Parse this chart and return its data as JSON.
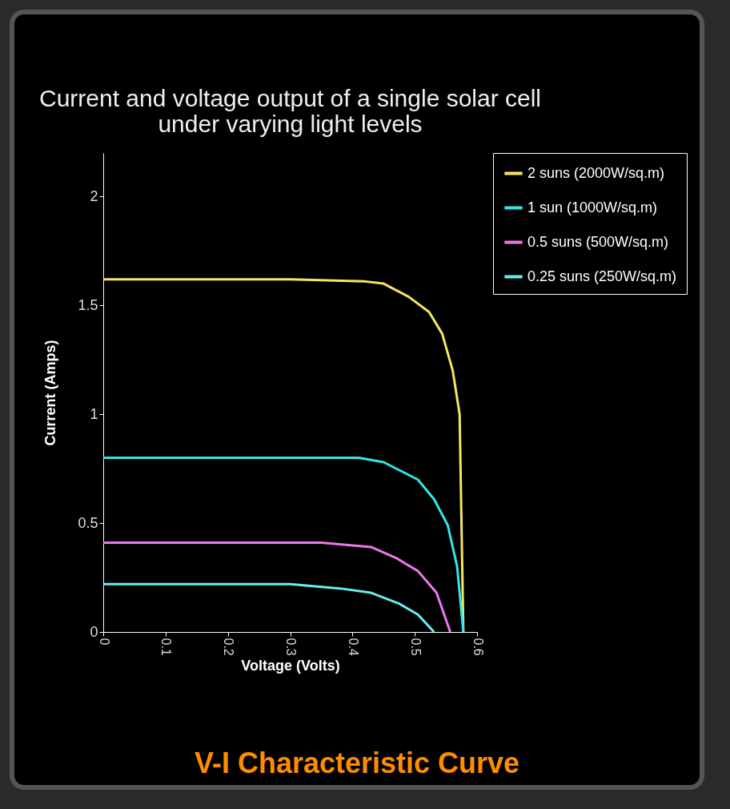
{
  "chart_data": {
    "type": "line",
    "title": [
      "Current and voltage output of a single solar cell",
      "under varying light levels"
    ],
    "xlabel": "Voltage (Volts)",
    "ylabel": "Current (Amps)",
    "xlim": [
      0,
      0.6
    ],
    "xticks": [
      0,
      0.1,
      0.2,
      0.3,
      0.4,
      0.5,
      0.6
    ],
    "ylim": [
      0,
      2.2
    ],
    "yticks": [
      0,
      0.5,
      1,
      1.5,
      2
    ],
    "grid": false,
    "legend": "right",
    "marker": "none",
    "line_style": "solid",
    "annotations": [
      "V-I Characteristic Curve"
    ],
    "series": [
      {
        "name": "2 suns (2000W/sq.m)",
        "color": "#f5e663",
        "x": [
          0,
          0.3,
          0.42,
          0.45,
          0.49,
          0.523,
          0.544,
          0.561,
          0.572,
          0.578
        ],
        "values": [
          1.62,
          1.62,
          1.61,
          1.6,
          1.54,
          1.47,
          1.37,
          1.2,
          1.0,
          0
        ]
      },
      {
        "name": "1 sun (1000W/sq.m)",
        "color": "#33e6e6",
        "x": [
          0,
          0.41,
          0.45,
          0.505,
          0.531,
          0.553,
          0.568,
          0.578
        ],
        "values": [
          0.8,
          0.8,
          0.78,
          0.7,
          0.61,
          0.49,
          0.3,
          0
        ]
      },
      {
        "name": "0.5 suns (500W/sq.m)",
        "color": "#ee77ee",
        "x": [
          0,
          0.35,
          0.43,
          0.47,
          0.505,
          0.535,
          0.557
        ],
        "values": [
          0.41,
          0.41,
          0.39,
          0.34,
          0.28,
          0.18,
          0
        ]
      },
      {
        "name": "0.25 suns (250W/sq.m)",
        "color": "#66eeee",
        "x": [
          0,
          0.3,
          0.38,
          0.43,
          0.475,
          0.505,
          0.531
        ],
        "values": [
          0.22,
          0.22,
          0.2,
          0.18,
          0.13,
          0.08,
          0
        ]
      }
    ]
  }
}
